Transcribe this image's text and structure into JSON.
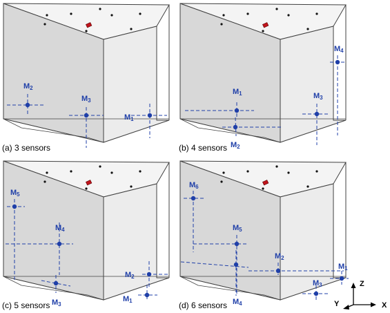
{
  "panels": [
    {
      "id": "a",
      "caption": "(a) 3 sensors",
      "sensors": [
        {
          "label": "M",
          "sub": "1"
        },
        {
          "label": "M",
          "sub": "2"
        },
        {
          "label": "M",
          "sub": "3"
        }
      ]
    },
    {
      "id": "b",
      "caption": "(b) 4 sensors",
      "sensors": [
        {
          "label": "M",
          "sub": "1"
        },
        {
          "label": "M",
          "sub": "2"
        },
        {
          "label": "M",
          "sub": "3"
        },
        {
          "label": "M",
          "sub": "4"
        }
      ]
    },
    {
      "id": "c",
      "caption": "(c) 5 sensors",
      "sensors": [
        {
          "label": "M",
          "sub": "1"
        },
        {
          "label": "M",
          "sub": "2"
        },
        {
          "label": "M",
          "sub": "3"
        },
        {
          "label": "M",
          "sub": "4"
        },
        {
          "label": "M",
          "sub": "5"
        }
      ]
    },
    {
      "id": "d",
      "caption": "(d) 6 sensors",
      "sensors": [
        {
          "label": "M",
          "sub": "1"
        },
        {
          "label": "M",
          "sub": "2"
        },
        {
          "label": "M",
          "sub": "3"
        },
        {
          "label": "M",
          "sub": "4"
        },
        {
          "label": "M",
          "sub": "5"
        },
        {
          "label": "M",
          "sub": "6"
        }
      ]
    }
  ],
  "axes": {
    "z": "Z",
    "y": "Y",
    "x": "X"
  },
  "colors": {
    "sensor": "#1f3fa8",
    "marker": "#c0141c",
    "edge": "#404040",
    "face_left": "#d8d8d8",
    "face_right": "#ececec",
    "face_top": "#f4f4f4"
  }
}
